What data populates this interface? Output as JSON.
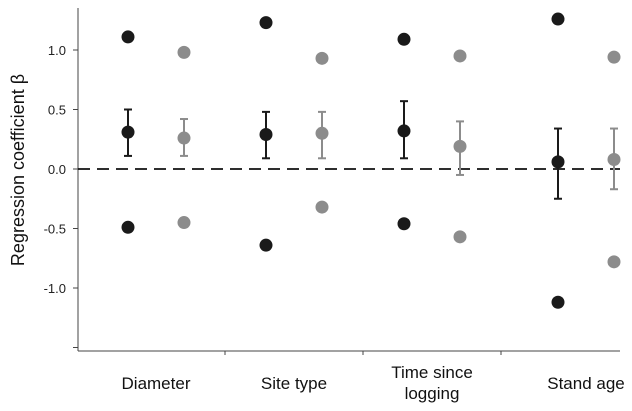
{
  "chart_data": {
    "type": "scatter",
    "title": "",
    "ylabel": "Regression coefficient β",
    "xlabel": "",
    "ylim": [
      -1.5,
      1.35
    ],
    "yticks": [
      1.0,
      0.5,
      0.0,
      -0.5,
      -1.0
    ],
    "ytick_labels": [
      "1.0",
      "0.5",
      "0.0",
      "-0.5",
      "-1.0"
    ],
    "reference_line": 0,
    "reference_line_style": "dashed",
    "grid": false,
    "legend": "none",
    "categories": [
      "Diameter",
      "Site type",
      "Time since\nlogging",
      "Stand age"
    ],
    "series": [
      {
        "color": "#1a1a1a",
        "mean": [
          0.31,
          0.29,
          0.32,
          0.06
        ],
        "ci_low": [
          0.11,
          0.09,
          0.09,
          -0.25
        ],
        "ci_high": [
          0.5,
          0.48,
          0.57,
          0.34
        ],
        "upper": [
          1.11,
          1.23,
          1.09,
          1.26
        ],
        "lower": [
          -0.49,
          -0.64,
          -0.46,
          -1.12
        ]
      },
      {
        "color": "#8c8c8c",
        "mean": [
          0.26,
          0.3,
          0.19,
          0.08
        ],
        "ci_low": [
          0.11,
          0.09,
          -0.05,
          -0.17
        ],
        "ci_high": [
          0.42,
          0.48,
          0.4,
          0.34
        ],
        "upper": [
          0.98,
          0.93,
          0.95,
          0.94
        ],
        "lower": [
          -0.45,
          -0.32,
          -0.57,
          -0.78
        ]
      }
    ]
  }
}
